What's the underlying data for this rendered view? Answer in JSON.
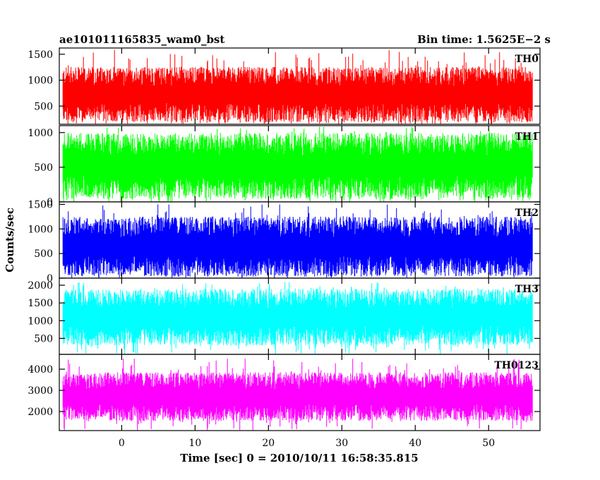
{
  "header": {
    "left": "ae101011165835_wam0_bst",
    "right": "Bin time: 1.5625E−2 s"
  },
  "axes": {
    "ylabel": "Counts/sec",
    "xlabel": "Time [sec] 0 = 2010/10/11 16:58:35.815"
  },
  "chart_data": {
    "type": "line",
    "title": "ae101011165835_wam0_bst",
    "subtitle": "Bin time: 1.5625E−2 s",
    "xlabel": "Time [sec] 0 = 2010/10/11 16:58:35.815",
    "ylabel": "Counts/sec",
    "xlim": [
      -8.5,
      57
    ],
    "x_ticks": [
      0,
      10,
      20,
      30,
      40,
      50
    ],
    "x_tick_labels": [
      "0",
      "10",
      "20",
      "30",
      "40",
      "50"
    ],
    "x_data_range": [
      -8,
      56
    ],
    "bin_time_s": 0.015625,
    "grid": false,
    "panels": [
      {
        "name": "TH0",
        "color": "#ff0000",
        "ylim": [
          150,
          1620
        ],
        "y_ticks": [
          500,
          1000,
          1500
        ],
        "y_tick_labels": [
          "500",
          "1000",
          "1500"
        ],
        "mean": 720,
        "typical_range": [
          180,
          1250
        ],
        "max_spike": 1600
      },
      {
        "name": "TH1",
        "color": "#00ff00",
        "ylim": [
          0,
          1100
        ],
        "y_ticks": [
          0,
          500,
          1000
        ],
        "y_tick_labels": [
          "0",
          "500",
          "1000"
        ],
        "mean": 520,
        "typical_range": [
          50,
          1000
        ],
        "max_spike": 1090
      },
      {
        "name": "TH2",
        "color": "#0000ff",
        "ylim": [
          0,
          1550
        ],
        "y_ticks": [
          0,
          500,
          1000,
          1500
        ],
        "y_tick_labels": [
          "0",
          "500",
          "1000",
          "1500"
        ],
        "mean": 640,
        "typical_range": [
          80,
          1300
        ],
        "max_spike": 1500
      },
      {
        "name": "TH3",
        "color": "#00ffff",
        "ylim": [
          50,
          2200
        ],
        "y_ticks": [
          500,
          1000,
          1500,
          2000
        ],
        "y_tick_labels": [
          "500",
          "1000",
          "1500",
          "2000"
        ],
        "mean": 1100,
        "typical_range": [
          300,
          1900
        ],
        "max_spike": 2100
      },
      {
        "name": "TH0123",
        "color": "#ff00ff",
        "ylim": [
          1100,
          4700
        ],
        "y_ticks": [
          2000,
          3000,
          4000
        ],
        "y_tick_labels": [
          "2000",
          "3000",
          "4000"
        ],
        "mean": 2700,
        "typical_range": [
          1600,
          3900
        ],
        "max_spike": 4500
      }
    ]
  }
}
